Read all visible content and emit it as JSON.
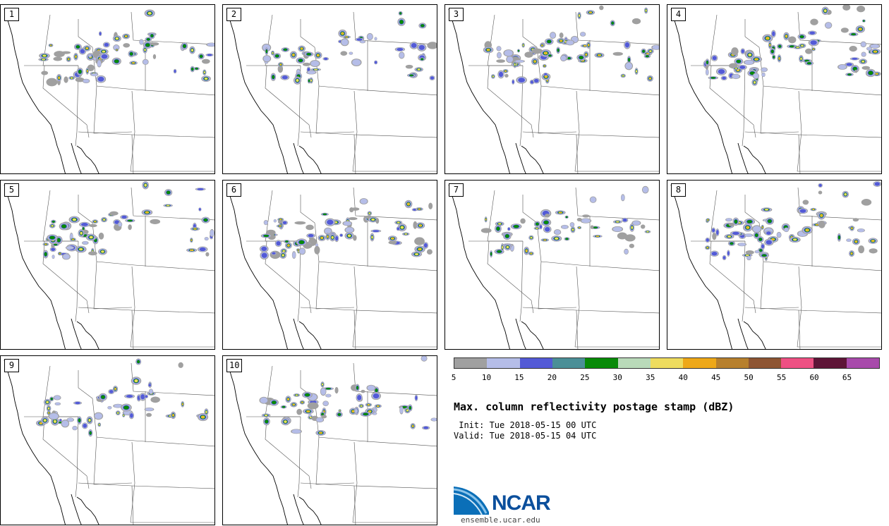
{
  "panels": [
    {
      "label": "1",
      "seed": 11
    },
    {
      "label": "2",
      "seed": 23
    },
    {
      "label": "3",
      "seed": 37
    },
    {
      "label": "4",
      "seed": 41
    },
    {
      "label": "5",
      "seed": 53
    },
    {
      "label": "6",
      "seed": 67
    },
    {
      "label": "7",
      "seed": 71
    },
    {
      "label": "8",
      "seed": 89
    },
    {
      "label": "9",
      "seed": 97
    },
    {
      "label": "10",
      "seed": 103
    }
  ],
  "colorbar": {
    "colors": [
      "#a0a0a0",
      "#b5bde8",
      "#535ad6",
      "#4b8f97",
      "#078a07",
      "#b9dab9",
      "#eedc5e",
      "#eea818",
      "#b7802d",
      "#8e5533",
      "#ee5083",
      "#5e1537",
      "#a84aab"
    ],
    "ticks": [
      "5",
      "10",
      "15",
      "20",
      "25",
      "30",
      "35",
      "40",
      "45",
      "50",
      "55",
      "60",
      "65"
    ]
  },
  "title": "Max. column reflectivity postage stamp (dBZ)",
  "init_line": " Init: Tue 2018-05-15 00 UTC",
  "valid_line": "Valid: Tue 2018-05-15 04 UTC",
  "logo": {
    "name": "NCAR",
    "url": "ensemble.ucar.edu"
  }
}
